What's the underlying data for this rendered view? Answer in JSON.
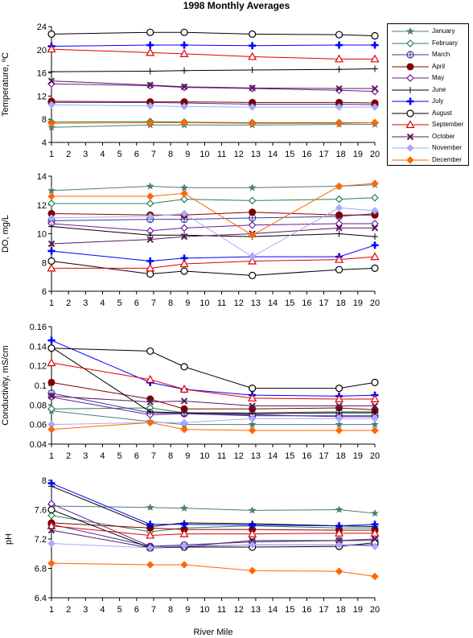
{
  "chart_data": {
    "type": "line",
    "title": "1998 Monthly Averages",
    "xlabel": "River Mile",
    "x": [
      1,
      6.8,
      8.8,
      12.8,
      17.9,
      20
    ],
    "xticks": [
      1,
      2,
      3,
      4,
      5,
      6,
      7,
      8,
      9,
      10,
      11,
      12,
      13,
      14,
      15,
      16,
      17,
      18,
      19,
      20
    ],
    "legend_position": "top-right",
    "legend": [
      "January",
      "February",
      "March",
      "April",
      "May",
      "June",
      "July",
      "August",
      "September",
      "October",
      "November",
      "December"
    ],
    "styles": {
      "January": {
        "color": "#4d7b7b",
        "marker": "star"
      },
      "February": {
        "color": "#2e7d4f",
        "marker": "diamond-open"
      },
      "March": {
        "color": "#3b3b9a",
        "marker": "circle-cross"
      },
      "April": {
        "color": "#800000",
        "marker": "circle-filled"
      },
      "May": {
        "color": "#6a1b9a",
        "marker": "diamond-open"
      },
      "June": {
        "color": "#000000",
        "marker": "plus"
      },
      "July": {
        "color": "#0000ff",
        "marker": "plus-bold"
      },
      "August": {
        "color": "#000000",
        "marker": "circle-open"
      },
      "September": {
        "color": "#e00000",
        "marker": "triangle-open"
      },
      "October": {
        "color": "#5a1a5a",
        "marker": "x"
      },
      "November": {
        "color": "#a9a9ff",
        "marker": "diamond-filled"
      },
      "December": {
        "color": "#ff6600",
        "marker": "diamond-filled"
      }
    },
    "panels": [
      {
        "ylabel": "Temperature, ºC",
        "ylim": [
          4,
          24
        ],
        "yticks": [
          "4",
          "8",
          "12",
          "16",
          "20",
          "24"
        ],
        "series": [
          {
            "name": "January",
            "values": [
              6.6,
              7.0,
              7.0,
              7.0,
              7.1,
              7.1
            ]
          },
          {
            "name": "February",
            "values": [
              7.5,
              7.6,
              7.5,
              7.4,
              7.4,
              7.4
            ]
          },
          {
            "name": "March",
            "values": [
              10.9,
              10.9,
              10.8,
              10.6,
              10.6,
              10.5
            ]
          },
          {
            "name": "April",
            "values": [
              11.1,
              11.0,
              11.0,
              10.9,
              10.9,
              10.8
            ]
          },
          {
            "name": "May",
            "values": [
              14.1,
              13.8,
              13.5,
              13.3,
              13.0,
              12.8
            ]
          },
          {
            "name": "June",
            "values": [
              16.2,
              16.3,
              16.4,
              16.5,
              16.6,
              16.7
            ]
          },
          {
            "name": "July",
            "values": [
              20.6,
              20.8,
              20.8,
              20.7,
              20.8,
              20.8
            ]
          },
          {
            "name": "August",
            "values": [
              22.7,
              23.0,
              23.0,
              22.7,
              22.6,
              22.4
            ]
          },
          {
            "name": "September",
            "values": [
              20.1,
              19.5,
              19.3,
              18.8,
              18.4,
              18.4
            ]
          },
          {
            "name": "October",
            "values": [
              14.6,
              13.9,
              13.6,
              13.4,
              13.3,
              13.3
            ]
          },
          {
            "name": "November",
            "values": [
              10.5,
              10.3,
              10.2,
              10.1,
              10.1,
              10.1
            ]
          },
          {
            "name": "December",
            "values": [
              7.3,
              7.4,
              7.4,
              7.3,
              7.3,
              7.4
            ]
          }
        ]
      },
      {
        "ylabel": "DO, mg/L",
        "ylim": [
          6,
          14
        ],
        "yticks": [
          "6",
          "8",
          "10",
          "12",
          "14"
        ],
        "series": [
          {
            "name": "January",
            "values": [
              13.0,
              13.3,
              13.2,
              13.2,
              13.3,
              13.4
            ]
          },
          {
            "name": "February",
            "values": [
              12.1,
              12.1,
              12.4,
              12.3,
              12.4,
              12.5
            ]
          },
          {
            "name": "March",
            "values": [
              10.9,
              11.0,
              11.0,
              11.1,
              11.2,
              11.4
            ]
          },
          {
            "name": "April",
            "values": [
              11.4,
              11.3,
              11.3,
              11.5,
              11.3,
              11.3
            ]
          },
          {
            "name": "May",
            "values": [
              10.7,
              10.2,
              10.4,
              10.6,
              10.7,
              10.7
            ]
          },
          {
            "name": "June",
            "values": [
              10.5,
              9.9,
              9.9,
              9.8,
              10.0,
              9.8
            ]
          },
          {
            "name": "July",
            "values": [
              8.8,
              8.1,
              8.3,
              8.4,
              8.4,
              9.2
            ]
          },
          {
            "name": "August",
            "values": [
              8.1,
              7.2,
              7.4,
              7.1,
              7.5,
              7.6
            ]
          },
          {
            "name": "September",
            "values": [
              7.6,
              7.6,
              7.9,
              8.1,
              8.2,
              8.4
            ]
          },
          {
            "name": "October",
            "values": [
              9.3,
              9.6,
              9.8,
              10.0,
              10.4,
              10.4
            ]
          },
          {
            "name": "November",
            "values": [
              11.1,
              11.2,
              11.4,
              8.4,
              11.8,
              11.6
            ]
          },
          {
            "name": "December",
            "values": [
              12.6,
              12.6,
              12.8,
              9.9,
              13.3,
              13.5
            ]
          }
        ]
      },
      {
        "ylabel": "Conductivity, mS/cm",
        "ylim": [
          0.04,
          0.16
        ],
        "yticks": [
          "0.04",
          "0.06",
          "0.08",
          "0.1",
          "0.12",
          "0.14",
          "0.16"
        ],
        "series": [
          {
            "name": "January",
            "values": [
              0.074,
              0.063,
              0.06,
              0.06,
              0.06,
              0.06
            ]
          },
          {
            "name": "February",
            "values": [
              0.076,
              0.077,
              0.072,
              0.072,
              0.073,
              0.073
            ]
          },
          {
            "name": "March",
            "values": [
              0.092,
              0.072,
              0.071,
              0.069,
              0.069,
              0.069
            ]
          },
          {
            "name": "April",
            "values": [
              0.103,
              0.086,
              0.076,
              0.076,
              0.077,
              0.075
            ]
          },
          {
            "name": "May",
            "values": [
              0.088,
              0.07,
              0.071,
              0.07,
              0.068,
              0.068
            ]
          },
          {
            "name": "June",
            "values": [
              0.139,
              0.073,
              0.072,
              0.071,
              0.072,
              0.072
            ]
          },
          {
            "name": "July",
            "values": [
              0.146,
              0.103,
              0.096,
              0.09,
              0.089,
              0.09
            ]
          },
          {
            "name": "August",
            "values": [
              0.138,
              0.135,
              0.119,
              0.097,
              0.097,
              0.103
            ]
          },
          {
            "name": "September",
            "values": [
              0.123,
              0.106,
              0.096,
              0.087,
              0.086,
              0.086
            ]
          },
          {
            "name": "October",
            "values": [
              0.089,
              0.083,
              0.084,
              0.079,
              0.079,
              0.079
            ]
          },
          {
            "name": "November",
            "values": [
              0.06,
              0.062,
              0.062,
              0.066,
              0.066,
              0.066
            ]
          },
          {
            "name": "December",
            "values": [
              0.055,
              0.062,
              0.055,
              0.054,
              0.054,
              0.054
            ]
          }
        ]
      },
      {
        "ylabel": "pH",
        "ylim": [
          6.4,
          8.0
        ],
        "yticks": [
          "6.4",
          "6.8",
          "7.2",
          "7.6",
          "8"
        ],
        "series": [
          {
            "name": "January",
            "values": [
              7.65,
              7.63,
              7.62,
              7.59,
              7.6,
              7.55
            ]
          },
          {
            "name": "February",
            "values": [
              7.52,
              7.3,
              7.35,
              7.38,
              7.35,
              7.35
            ]
          },
          {
            "name": "March",
            "values": [
              7.4,
              7.1,
              7.12,
              7.16,
              7.18,
              7.18
            ]
          },
          {
            "name": "April",
            "values": [
              7.42,
              7.35,
              7.33,
              7.33,
              7.32,
              7.32
            ]
          },
          {
            "name": "May",
            "values": [
              7.68,
              7.1,
              7.1,
              7.12,
              7.12,
              7.12
            ]
          },
          {
            "name": "June",
            "values": [
              7.92,
              7.37,
              7.42,
              7.41,
              7.38,
              7.37
            ]
          },
          {
            "name": "July",
            "values": [
              7.96,
              7.4,
              7.4,
              7.39,
              7.38,
              7.4
            ]
          },
          {
            "name": "August",
            "values": [
              7.6,
              7.08,
              7.09,
              7.09,
              7.1,
              7.15
            ]
          },
          {
            "name": "September",
            "values": [
              7.38,
              7.25,
              7.27,
              7.27,
              7.28,
              7.28
            ]
          },
          {
            "name": "October",
            "values": [
              7.32,
              7.08,
              7.1,
              7.18,
              7.18,
              7.2
            ]
          },
          {
            "name": "November",
            "values": [
              7.14,
              7.08,
              7.11,
              7.12,
              7.12,
              7.1
            ]
          },
          {
            "name": "December",
            "values": [
              6.87,
              6.85,
              6.85,
              6.77,
              6.76,
              6.69
            ]
          }
        ]
      }
    ]
  }
}
